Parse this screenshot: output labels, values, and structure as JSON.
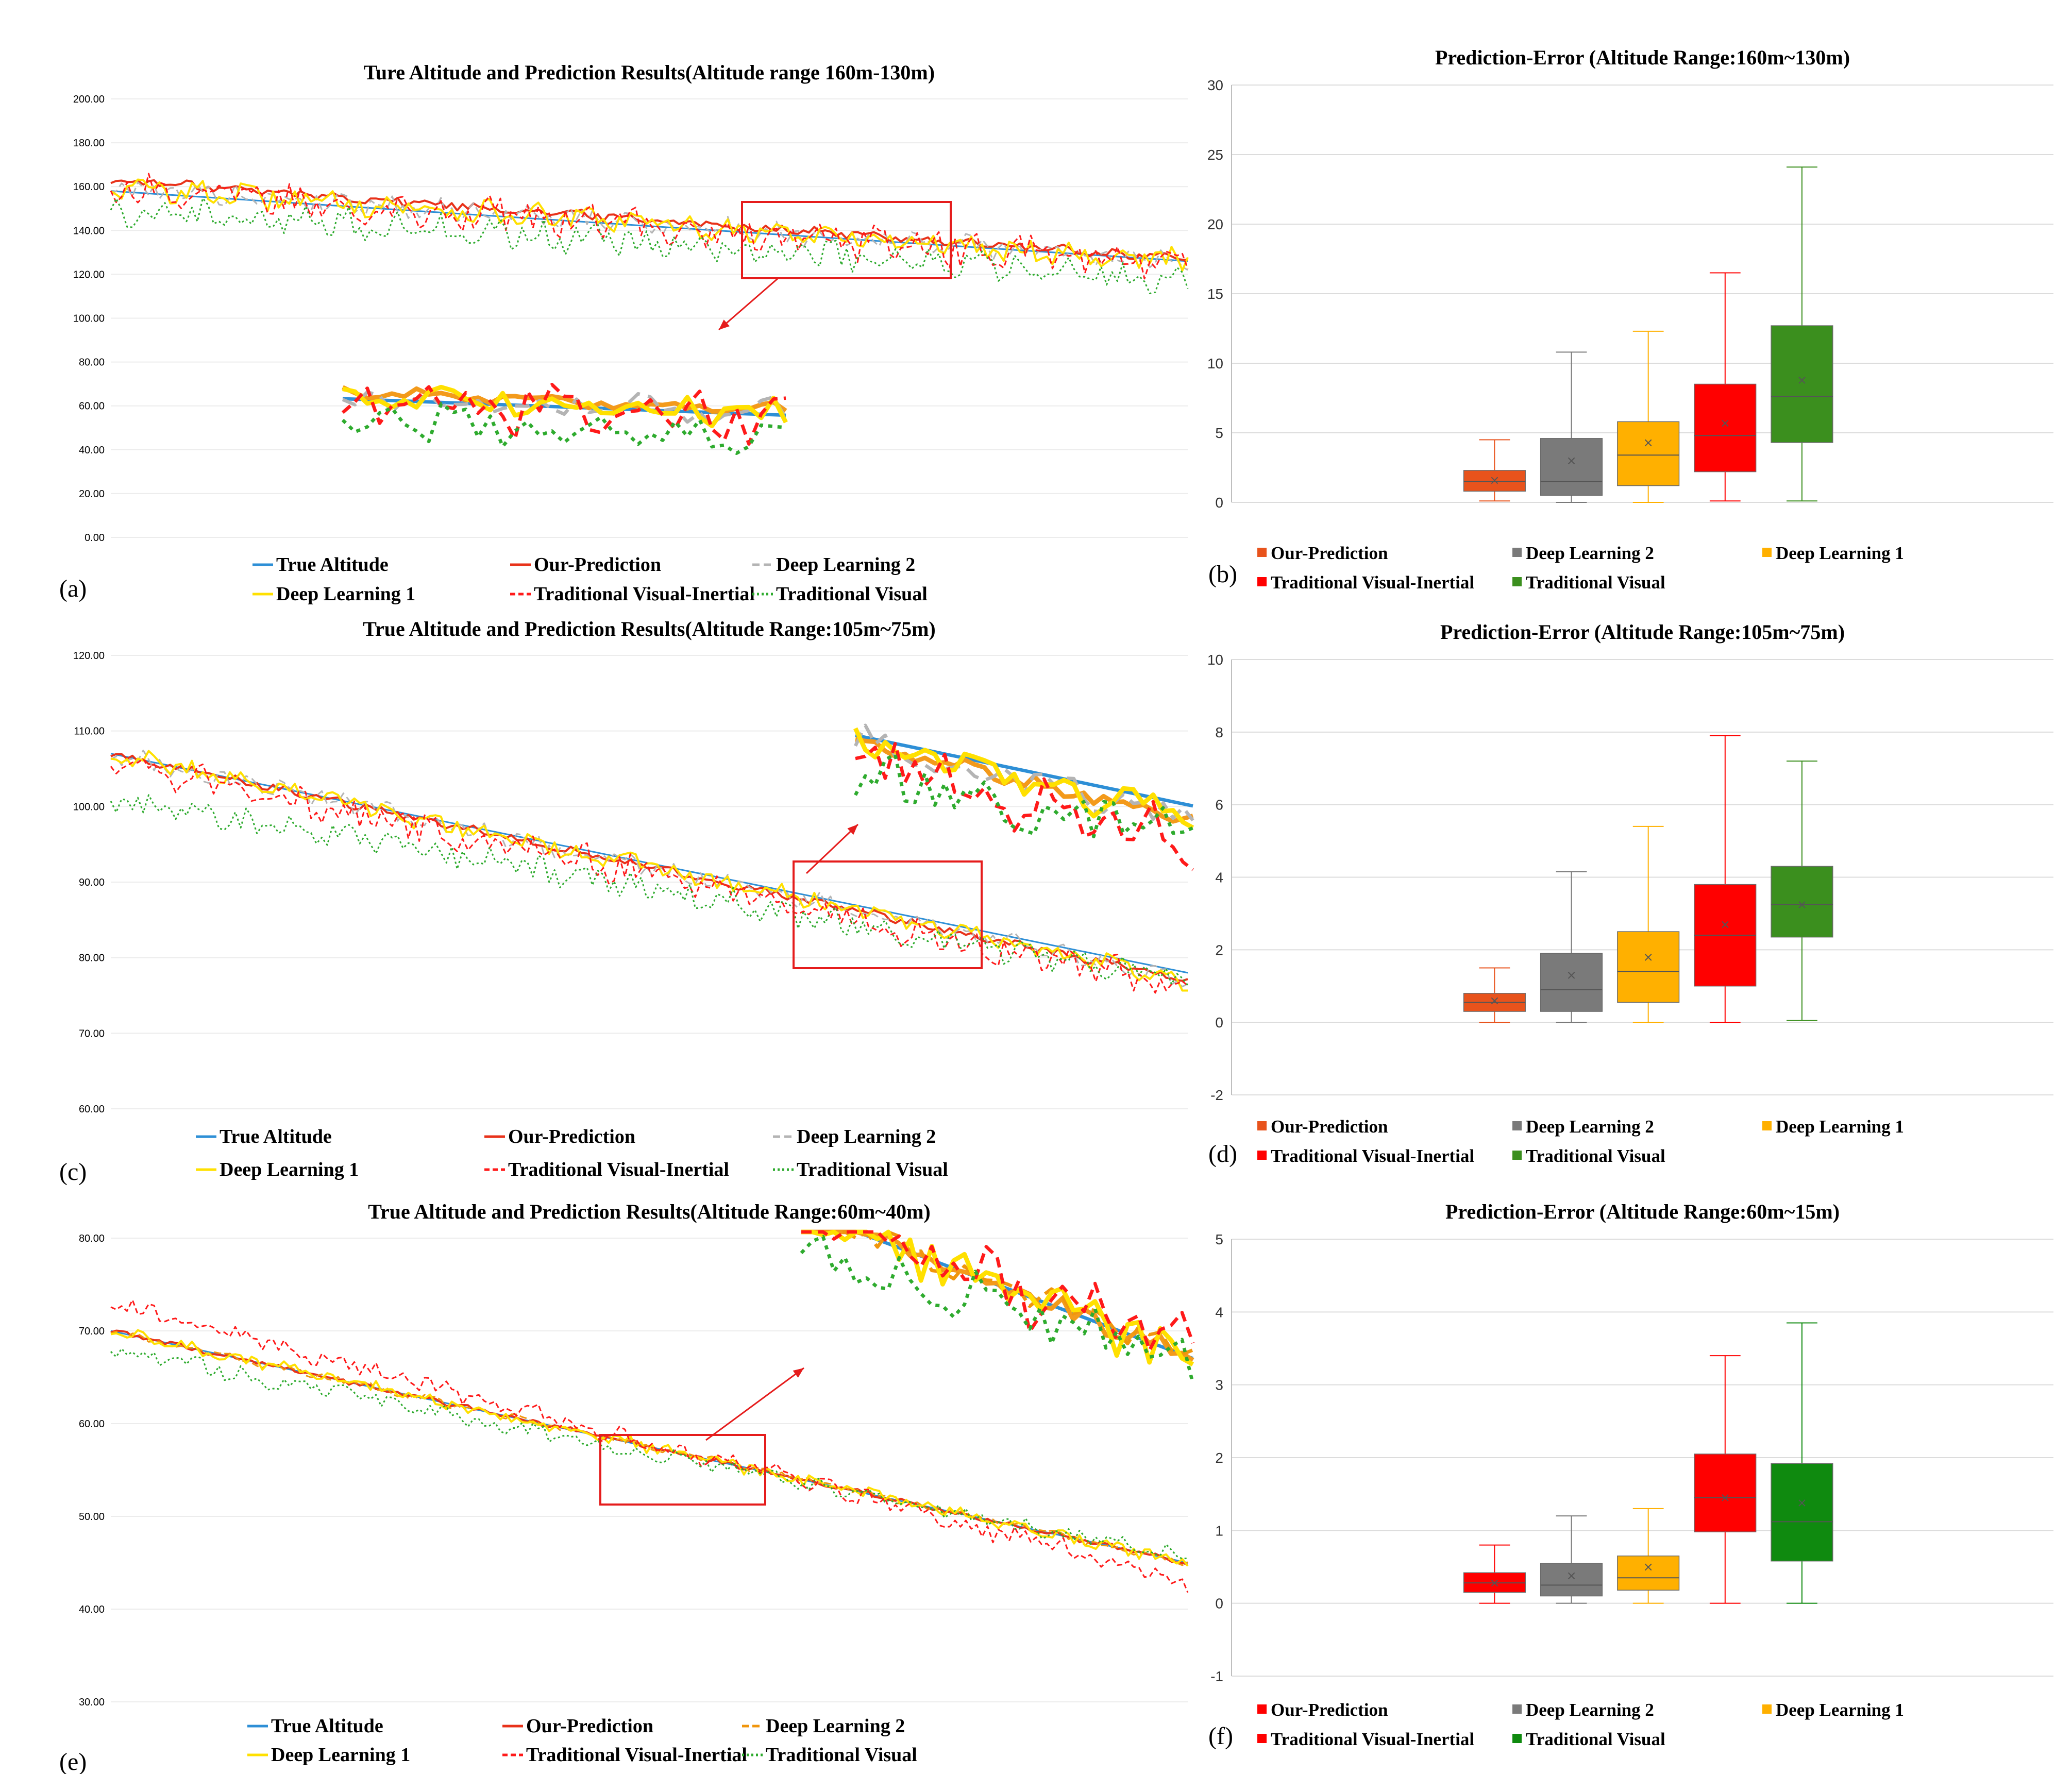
{
  "panel_labels": [
    "(a)",
    "(b)",
    "(c)",
    "(d)",
    "(e)",
    "(f)"
  ],
  "legend_line": [
    "True Altitude",
    "Our-Prediction",
    "Deep Learning 2",
    "Deep Learning 1",
    "Traditional Visual-Inertial",
    "Traditional Visual"
  ],
  "legend_box": [
    "Our-Prediction",
    "Deep Learning 2",
    "Deep Learning 1",
    "Traditional Visual-Inertial",
    "Traditional Visual"
  ],
  "colors": {
    "true": "#2e8fd6",
    "ours": "#e8321a",
    "dl2": "#b4b4b4",
    "dl1": "#ffe000",
    "tvi": "#ff1a1a",
    "tv": "#2eab2e",
    "dl2_e": "#f0960c",
    "box_ours": "#e8531c",
    "box_dl2": "#7a7a7a",
    "box_dl1": "#ffb000",
    "box_tvi": "#ff0000",
    "box_tv": "#3b8f1e",
    "box_tv_f": "#0f8a0f"
  },
  "chart_data": [
    {
      "type": "line",
      "title": "Ture Altitude and Prediction Results(Altitude range 160m-130m)",
      "ylim": [
        0,
        200
      ],
      "yticks": [
        "200.00",
        "180.00",
        "160.00",
        "140.00",
        "120.00",
        "100.00",
        "80.00",
        "60.00",
        "40.00",
        "20.00",
        "0.00"
      ],
      "n_points": 200,
      "series": [
        {
          "name": "True Altitude",
          "start": 158,
          "end": 126
        },
        {
          "name": "Our-Prediction",
          "start": 163,
          "end": 127
        },
        {
          "name": "Deep Learning 2",
          "start": 160,
          "end": 126
        },
        {
          "name": "Deep Learning 1",
          "start": 160,
          "end": 126
        },
        {
          "name": "Traditional Visual-Inertial",
          "start": 160,
          "end": 124
        },
        {
          "name": "Traditional Visual",
          "start": 150,
          "end": 118
        }
      ],
      "inset_range": [
        118,
        155
      ]
    },
    {
      "type": "box",
      "title": "Prediction-Error (Altitude Range:160m~130m)",
      "ylim": [
        0,
        30
      ],
      "yticks": [
        "30",
        "25",
        "20",
        "15",
        "10",
        "5",
        "0"
      ],
      "categories": [
        "Our-Prediction",
        "Deep Learning 2",
        "Deep Learning 1",
        "Traditional Visual-Inertial",
        "Traditional Visual"
      ],
      "boxes": [
        {
          "min": 0.1,
          "q1": 0.8,
          "median": 1.5,
          "q3": 2.3,
          "max": 4.5,
          "mean": 1.6
        },
        {
          "min": 0.0,
          "q1": 0.5,
          "median": 1.5,
          "q3": 4.6,
          "max": 10.8,
          "mean": 3.0
        },
        {
          "min": 0.0,
          "q1": 1.2,
          "median": 3.4,
          "q3": 5.8,
          "max": 12.3,
          "mean": 4.3
        },
        {
          "min": 0.1,
          "q1": 2.2,
          "median": 4.8,
          "q3": 8.5,
          "max": 16.5,
          "mean": 5.7
        },
        {
          "min": 0.1,
          "q1": 4.3,
          "median": 7.6,
          "q3": 12.7,
          "max": 24.1,
          "mean": 8.8
        }
      ]
    },
    {
      "type": "line",
      "title": "True Altitude and Prediction Results(Altitude Range:105m~75m)",
      "ylim": [
        60,
        120
      ],
      "yticks": [
        "120.00",
        "110.00",
        "100.00",
        "90.00",
        "80.00",
        "70.00",
        "60.00"
      ],
      "n_points": 200,
      "series": [
        {
          "name": "True Altitude",
          "start": 107,
          "end": 78
        },
        {
          "name": "Our-Prediction",
          "start": 107,
          "end": 77
        },
        {
          "name": "Deep Learning 2",
          "start": 107,
          "end": 77
        },
        {
          "name": "Deep Learning 1",
          "start": 107,
          "end": 77
        },
        {
          "name": "Traditional Visual-Inertial",
          "start": 106,
          "end": 76
        },
        {
          "name": "Traditional Visual",
          "start": 101,
          "end": 77
        }
      ],
      "inset_range": [
        80,
        93
      ]
    },
    {
      "type": "box",
      "title": "Prediction-Error (Altitude Range:105m~75m)",
      "ylim": [
        -2,
        10
      ],
      "yticks": [
        "10",
        "8",
        "6",
        "4",
        "2",
        "0",
        "-2"
      ],
      "categories": [
        "Our-Prediction",
        "Deep Learning 2",
        "Deep Learning 1",
        "Traditional Visual-Inertial",
        "Traditional Visual"
      ],
      "boxes": [
        {
          "min": 0.0,
          "q1": 0.3,
          "median": 0.55,
          "q3": 0.8,
          "max": 1.5,
          "mean": 0.6
        },
        {
          "min": 0.0,
          "q1": 0.3,
          "median": 0.9,
          "q3": 1.9,
          "max": 4.15,
          "mean": 1.3
        },
        {
          "min": 0.0,
          "q1": 0.55,
          "median": 1.4,
          "q3": 2.5,
          "max": 5.4,
          "mean": 1.8
        },
        {
          "min": 0.0,
          "q1": 1.0,
          "median": 2.4,
          "q3": 3.8,
          "max": 7.9,
          "mean": 2.7
        },
        {
          "min": 0.05,
          "q1": 2.35,
          "median": 3.25,
          "q3": 4.3,
          "max": 7.2,
          "mean": 3.25
        }
      ]
    },
    {
      "type": "line",
      "title": "True Altitude and Prediction Results(Altitude Range:60m~40m)",
      "ylim": [
        30,
        80
      ],
      "yticks": [
        "80.00",
        "70.00",
        "60.00",
        "50.00",
        "40.00",
        "30.00"
      ],
      "n_points": 200,
      "series": [
        {
          "name": "True Altitude",
          "start": 70,
          "end": 45
        },
        {
          "name": "Our-Prediction",
          "start": 70,
          "end": 45
        },
        {
          "name": "Deep Learning 2",
          "start": 70,
          "end": 45
        },
        {
          "name": "Deep Learning 1",
          "start": 70,
          "end": 45
        },
        {
          "name": "Traditional Visual-Inertial",
          "start": 73,
          "end": 43
        },
        {
          "name": "Traditional Visual",
          "start": 68,
          "end": 45.5
        }
      ],
      "inset_range": [
        52,
        58
      ]
    },
    {
      "type": "box",
      "title": "Prediction-Error (Altitude Range:60m~15m)",
      "ylim": [
        -1,
        5
      ],
      "yticks": [
        "5",
        "4",
        "3",
        "2",
        "1",
        "0",
        "-1"
      ],
      "categories": [
        "Our-Prediction",
        "Deep Learning 2",
        "Deep Learning 1",
        "Traditional Visual-Inertial",
        "Traditional Visual"
      ],
      "boxes": [
        {
          "min": 0.0,
          "q1": 0.15,
          "median": 0.28,
          "q3": 0.42,
          "max": 0.8,
          "mean": 0.28
        },
        {
          "min": 0.0,
          "q1": 0.1,
          "median": 0.25,
          "q3": 0.55,
          "max": 1.2,
          "mean": 0.38
        },
        {
          "min": 0.0,
          "q1": 0.18,
          "median": 0.35,
          "q3": 0.65,
          "max": 1.3,
          "mean": 0.5
        },
        {
          "min": 0.0,
          "q1": 0.98,
          "median": 1.45,
          "q3": 2.05,
          "max": 3.4,
          "mean": 1.45
        },
        {
          "min": 0.0,
          "q1": 0.58,
          "median": 1.12,
          "q3": 1.92,
          "max": 3.85,
          "mean": 1.38
        }
      ]
    }
  ]
}
